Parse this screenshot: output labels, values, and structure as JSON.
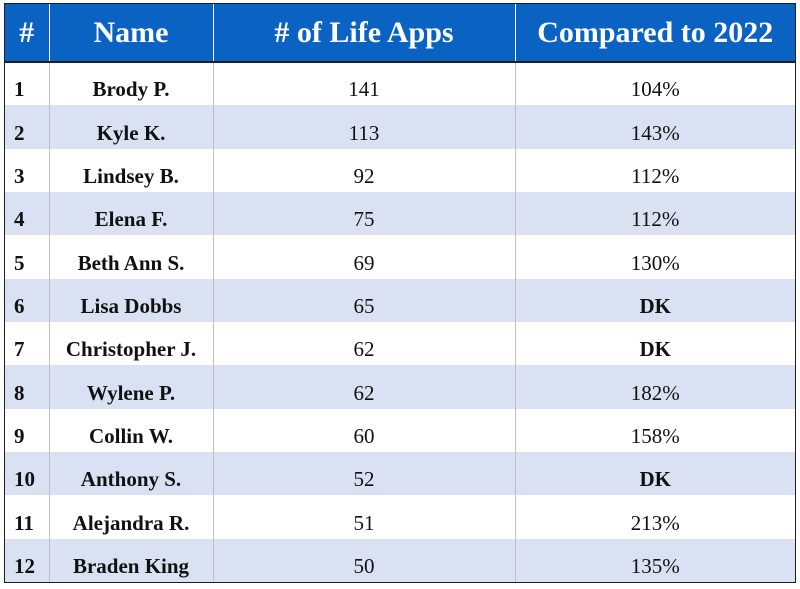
{
  "table": {
    "headers": {
      "rank": "#",
      "name": "Name",
      "apps": "# of Life Apps",
      "compared": "Compared to 2022"
    },
    "rows": [
      {
        "rank": "1",
        "name": "Brody P.",
        "apps": "141",
        "compared": "104%"
      },
      {
        "rank": "2",
        "name": "Kyle K.",
        "apps": "113",
        "compared": "143%"
      },
      {
        "rank": "3",
        "name": "Lindsey B.",
        "apps": "92",
        "compared": "112%"
      },
      {
        "rank": "4",
        "name": "Elena F.",
        "apps": "75",
        "compared": "112%"
      },
      {
        "rank": "5",
        "name": "Beth Ann S.",
        "apps": "69",
        "compared": "130%"
      },
      {
        "rank": "6",
        "name": "Lisa Dobbs",
        "apps": "65",
        "compared": "DK"
      },
      {
        "rank": "7",
        "name": "Christopher J.",
        "apps": "62",
        "compared": "DK"
      },
      {
        "rank": "8",
        "name": "Wylene P.",
        "apps": "62",
        "compared": "182%"
      },
      {
        "rank": "9",
        "name": "Collin W.",
        "apps": "60",
        "compared": "158%"
      },
      {
        "rank": "10",
        "name": "Anthony S.",
        "apps": "52",
        "compared": "DK"
      },
      {
        "rank": "11",
        "name": "Alejandra R.",
        "apps": "51",
        "compared": "213%"
      },
      {
        "rank": "12",
        "name": "Braden King",
        "apps": "50",
        "compared": "135%"
      }
    ]
  },
  "colors": {
    "header_bg": "#0a63c3",
    "header_text": "#ffffff",
    "band_bg": "#d9e1f2"
  }
}
